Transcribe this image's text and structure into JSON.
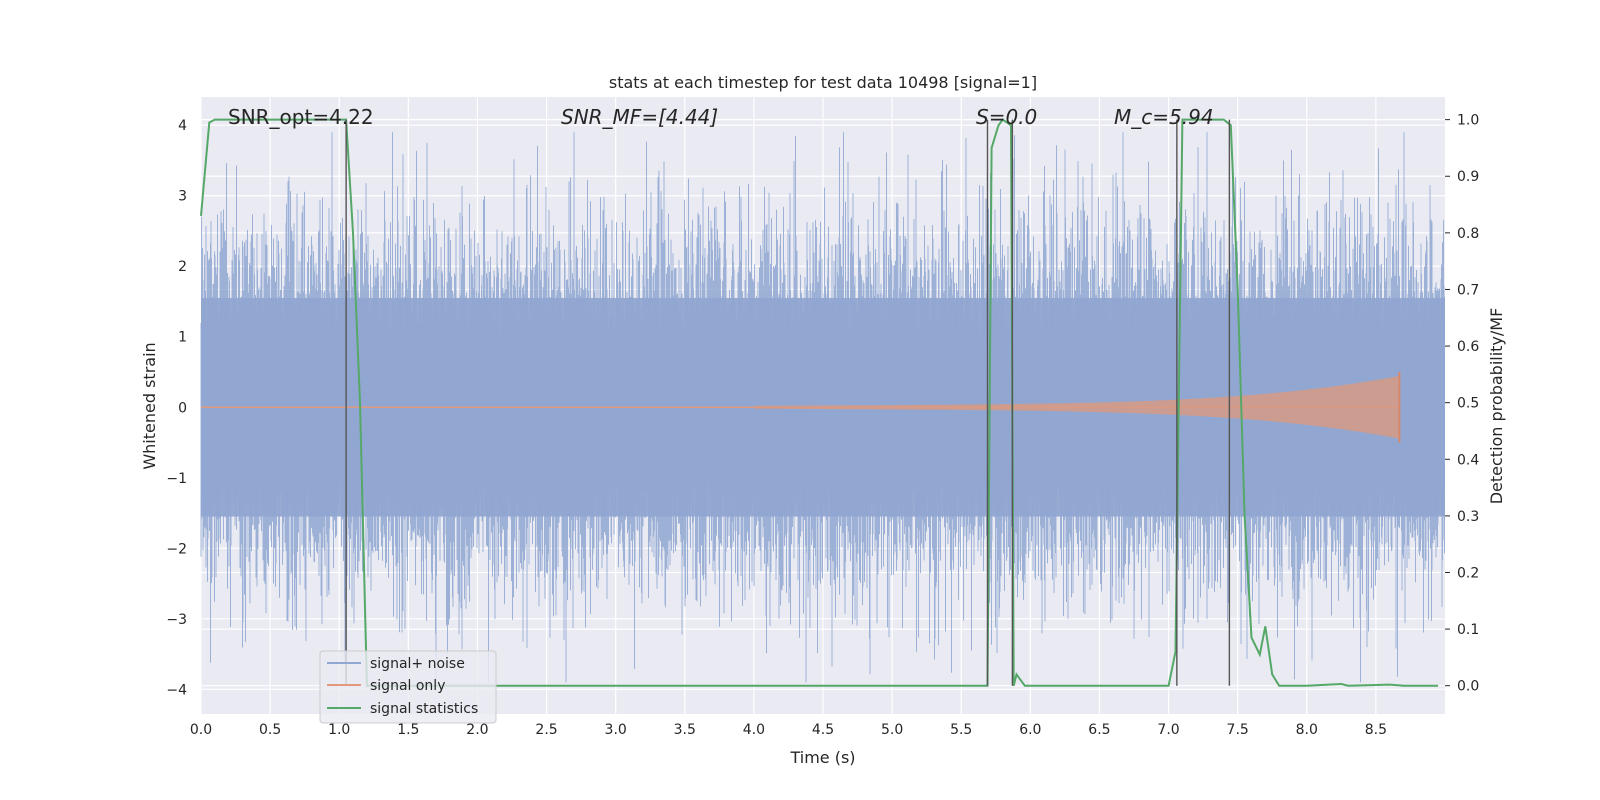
{
  "chart_data": {
    "type": "line",
    "title": "stats at each timestep for test data 10498 [signal=1]",
    "xlabel": "Time (s)",
    "ylabel_left": "Whitened strain",
    "ylabel_right": "Detection probability/MF",
    "xlim": [
      0.0,
      9.0
    ],
    "ylim_left": [
      -4.35,
      4.4
    ],
    "ylim_right": [
      -0.05,
      1.04
    ],
    "xticks": [
      "0.0",
      "0.5",
      "1.0",
      "1.5",
      "2.0",
      "2.5",
      "3.0",
      "3.5",
      "4.0",
      "4.5",
      "5.0",
      "5.5",
      "6.0",
      "6.5",
      "7.0",
      "7.5",
      "8.0",
      "8.5"
    ],
    "yticks_left": [
      "−4",
      "−3",
      "−2",
      "−1",
      "0",
      "1",
      "2",
      "3",
      "4"
    ],
    "yticks_right": [
      "0.0",
      "0.1",
      "0.2",
      "0.3",
      "0.4",
      "0.5",
      "0.6",
      "0.7",
      "0.8",
      "0.9",
      "1.0"
    ],
    "grid": true,
    "legend_position": "lower-left",
    "annotations": [
      {
        "id": "snr-opt",
        "text": "SNR_opt=4.22",
        "x": 0.2
      },
      {
        "id": "snr-mf",
        "text": "SNR_MF=[4.44]",
        "x": 2.6
      },
      {
        "id": "s-value",
        "text": "S=0.0",
        "x": 5.62
      },
      {
        "id": "mc-value",
        "text": "M_c=5.94",
        "x": 6.62
      }
    ],
    "series": [
      {
        "name": "signal+ noise",
        "color": "#8fa7d1",
        "axis": "left",
        "description_values": "whitened noise, approx ±2.5 typical, peaks to ±3.9",
        "seed": 10498,
        "spread": 1.0
      },
      {
        "name": "signal only",
        "color": "#e19a7e",
        "axis": "left",
        "chirp_start": 4.0,
        "chirp_end": 8.67,
        "peak_amplitude": 0.5
      },
      {
        "name": "signal statistics",
        "color": "#55a868",
        "axis": "right",
        "x": [
          0.0,
          0.06,
          0.1,
          0.2,
          0.5,
          0.8,
          1.0,
          1.05,
          1.1,
          1.15,
          1.2,
          1.25,
          1.3,
          2.0,
          3.0,
          4.0,
          5.0,
          5.5,
          5.69,
          5.72,
          5.77,
          5.8,
          5.86,
          5.88,
          5.9,
          5.96,
          6.0,
          6.5,
          7.0,
          7.05,
          7.1,
          7.13,
          7.2,
          7.4,
          7.45,
          7.5,
          7.55,
          7.6,
          7.66,
          7.7,
          7.75,
          7.8,
          8.0,
          8.25,
          8.3,
          8.6,
          8.7,
          8.95
        ],
        "values": [
          0.83,
          0.995,
          1.0,
          1.0,
          1.0,
          1.0,
          1.0,
          1.0,
          0.8,
          0.5,
          0.0,
          0.0,
          0.0,
          0.0,
          0.0,
          0.0,
          0.0,
          0.0,
          0.0,
          0.95,
          0.99,
          1.0,
          0.99,
          0.0,
          0.02,
          0.0,
          0.0,
          0.0,
          0.0,
          0.06,
          1.0,
          1.0,
          1.0,
          1.0,
          0.99,
          0.7,
          0.3,
          0.085,
          0.055,
          0.105,
          0.02,
          0.0,
          0.0,
          0.003,
          0.0,
          0.002,
          0.0,
          0.0
        ]
      }
    ],
    "vertical_lines_x": [
      1.05,
      5.69,
      5.87,
      7.06,
      7.44
    ]
  }
}
